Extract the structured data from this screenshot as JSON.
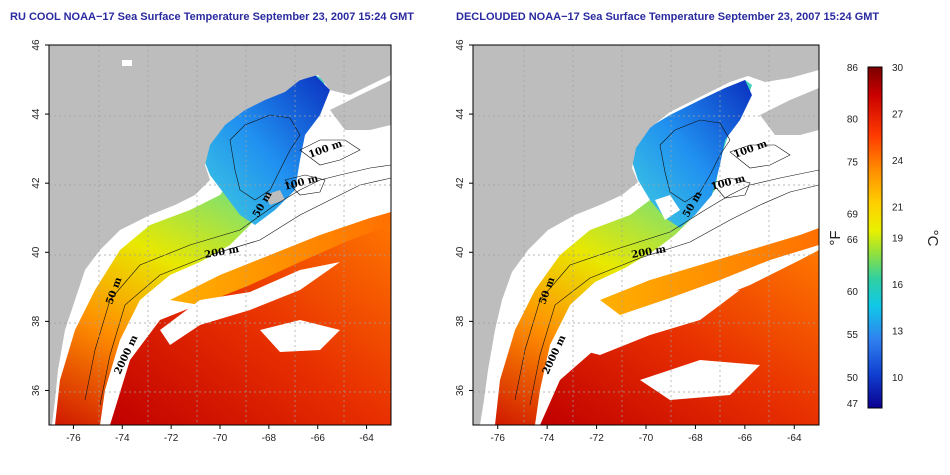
{
  "titles": {
    "left": "RU COOL NOAA−17 Sea Surface Temperature September 23, 2007 15:24 GMT",
    "right": "DECLOUDED NOAA−17 Sea Surface Temperature September 23, 2007 15:24 GMT"
  },
  "axes": {
    "x_ticks": [
      "-76",
      "-74",
      "-72",
      "-70",
      "-68",
      "-66",
      "-64"
    ],
    "y_ticks": [
      "36",
      "38",
      "40",
      "42",
      "44",
      "46"
    ],
    "x_range": [
      -77,
      -63
    ],
    "y_range": [
      35,
      46
    ]
  },
  "contour_labels": [
    "100 m",
    "100 m",
    "50 m",
    "200 m",
    "50 m",
    "2000 m"
  ],
  "colorbar": {
    "celsius_ticks": [
      "30",
      "27",
      "24",
      "21",
      "19",
      "16",
      "13",
      "10"
    ],
    "fahrenheit_ticks": [
      "86",
      "80",
      "75",
      "69",
      "66",
      "60",
      "55",
      "50",
      "47"
    ],
    "celsius_unit": "°C",
    "fahrenheit_unit": "°F",
    "range_c": [
      8,
      30
    ]
  },
  "colors": {
    "land": "#bdbdbd",
    "cloud": "#ffffff",
    "grid": "#a0a0a0",
    "title": "#2a2aa0"
  }
}
